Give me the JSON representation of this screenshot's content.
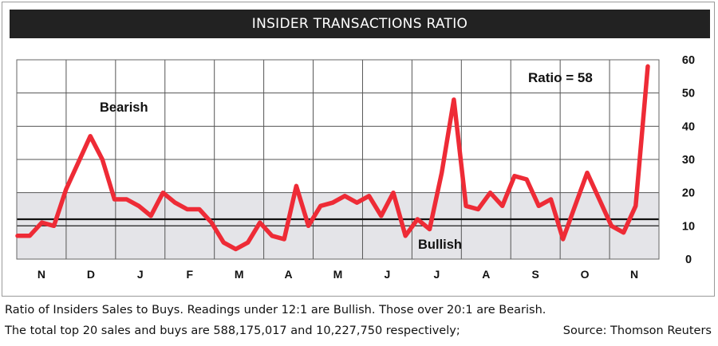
{
  "chart_data": {
    "type": "line",
    "title": "INSIDER TRANSACTIONS RATIO",
    "x_labels": [
      "N",
      "D",
      "J",
      "F",
      "M",
      "A",
      "M",
      "J",
      "J",
      "A",
      "S",
      "O",
      "N"
    ],
    "y_ticks": [
      0,
      10,
      20,
      30,
      40,
      50,
      60
    ],
    "ylim": [
      0,
      60
    ],
    "grid": true,
    "bands": {
      "bearish_threshold": 20,
      "bullish_threshold": 12,
      "reference_line": 10
    },
    "series": [
      {
        "color": "#ee2b36",
        "values": [
          7,
          7,
          11,
          10,
          21,
          29,
          37,
          30,
          18,
          18,
          16,
          13,
          20,
          17,
          15,
          15,
          11,
          5,
          3,
          5,
          11,
          7,
          6,
          22,
          10,
          16,
          17,
          19,
          17,
          19,
          13,
          20,
          7,
          12,
          9,
          26,
          48,
          16,
          15,
          20,
          16,
          25,
          24,
          16,
          18,
          6,
          16,
          26,
          18,
          10,
          8,
          16,
          58
        ]
      }
    ],
    "annotations": {
      "bearish": "Bearish",
      "bullish": "Bullish",
      "ratio": "Ratio = 58"
    }
  },
  "caption": {
    "line1": "Ratio of Insiders Sales to Buys. Readings under 12:1 are Bullish. Those over 20:1 are Bearish.",
    "line2": "The total top 20 sales and buys are 588,175,017 and 10,227,750 respectively;",
    "source": "Source: Thomson Reuters"
  }
}
